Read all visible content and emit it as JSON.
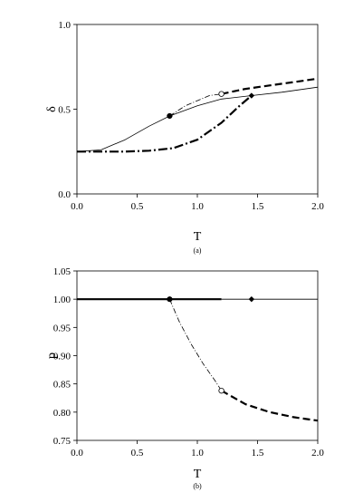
{
  "chart_data": [
    {
      "type": "line",
      "panel": "(a)",
      "xlabel": "T",
      "ylabel": "δ",
      "xlim": [
        0,
        2
      ],
      "ylim": [
        0,
        1
      ],
      "xticks": [
        "0.0",
        "0.5",
        "1.0",
        "1.5",
        "2.0"
      ],
      "yticks": [
        "0.0",
        "0.5",
        "1.0"
      ],
      "grid": false,
      "series": [
        {
          "style": "thin-solid",
          "x": [
            0,
            0.2,
            0.4,
            0.6,
            0.77,
            1.0,
            1.2,
            1.45,
            1.7,
            2.0
          ],
          "y": [
            0.25,
            0.26,
            0.32,
            0.4,
            0.46,
            0.52,
            0.56,
            0.58,
            0.6,
            0.63
          ]
        },
        {
          "style": "thin-dash-dot",
          "x": [
            0.77,
            0.9,
            1.0,
            1.1,
            1.2
          ],
          "y": [
            0.46,
            0.52,
            0.55,
            0.58,
            0.59
          ]
        },
        {
          "style": "thick-dashed",
          "x": [
            1.2,
            1.4,
            1.6,
            1.8,
            2.0
          ],
          "y": [
            0.59,
            0.62,
            0.64,
            0.66,
            0.68
          ]
        },
        {
          "style": "thick-dash-dot",
          "x": [
            0,
            0.4,
            0.6,
            0.8,
            1.0,
            1.2,
            1.35,
            1.45
          ],
          "y": [
            0.25,
            0.25,
            0.255,
            0.27,
            0.32,
            0.42,
            0.52,
            0.58
          ]
        }
      ],
      "markers": [
        {
          "shape": "filled-circle",
          "x": 0.77,
          "y": 0.46
        },
        {
          "shape": "open-circle",
          "x": 1.2,
          "y": 0.59
        },
        {
          "shape": "filled-diamond",
          "x": 1.45,
          "y": 0.58
        }
      ]
    },
    {
      "type": "line",
      "panel": "(b)",
      "xlabel": "T",
      "ylabel": "p",
      "xlim": [
        0,
        2
      ],
      "ylim": [
        0.75,
        1.05
      ],
      "xticks": [
        "0.0",
        "0.5",
        "1.0",
        "1.5",
        "2.0"
      ],
      "yticks": [
        "0.75",
        "0.80",
        "0.85",
        "0.90",
        "0.95",
        "1.00",
        "1.05"
      ],
      "grid": false,
      "series": [
        {
          "style": "thick-solid",
          "x": [
            0,
            1.2
          ],
          "y": [
            1.0,
            1.0
          ]
        },
        {
          "style": "thin-solid",
          "x": [
            1.2,
            2.0
          ],
          "y": [
            1.0,
            1.0
          ]
        },
        {
          "style": "thin-dash-dot",
          "x": [
            0.77,
            0.85,
            0.95,
            1.05,
            1.15,
            1.2
          ],
          "y": [
            1.0,
            0.96,
            0.92,
            0.885,
            0.855,
            0.838
          ]
        },
        {
          "style": "thick-dashed",
          "x": [
            1.2,
            1.4,
            1.6,
            1.8,
            2.0
          ],
          "y": [
            0.838,
            0.814,
            0.8,
            0.791,
            0.785
          ]
        }
      ],
      "markers": [
        {
          "shape": "filled-circle",
          "x": 0.77,
          "y": 1.0
        },
        {
          "shape": "open-circle",
          "x": 1.2,
          "y": 0.838
        },
        {
          "shape": "filled-diamond",
          "x": 1.45,
          "y": 1.0
        }
      ]
    }
  ]
}
